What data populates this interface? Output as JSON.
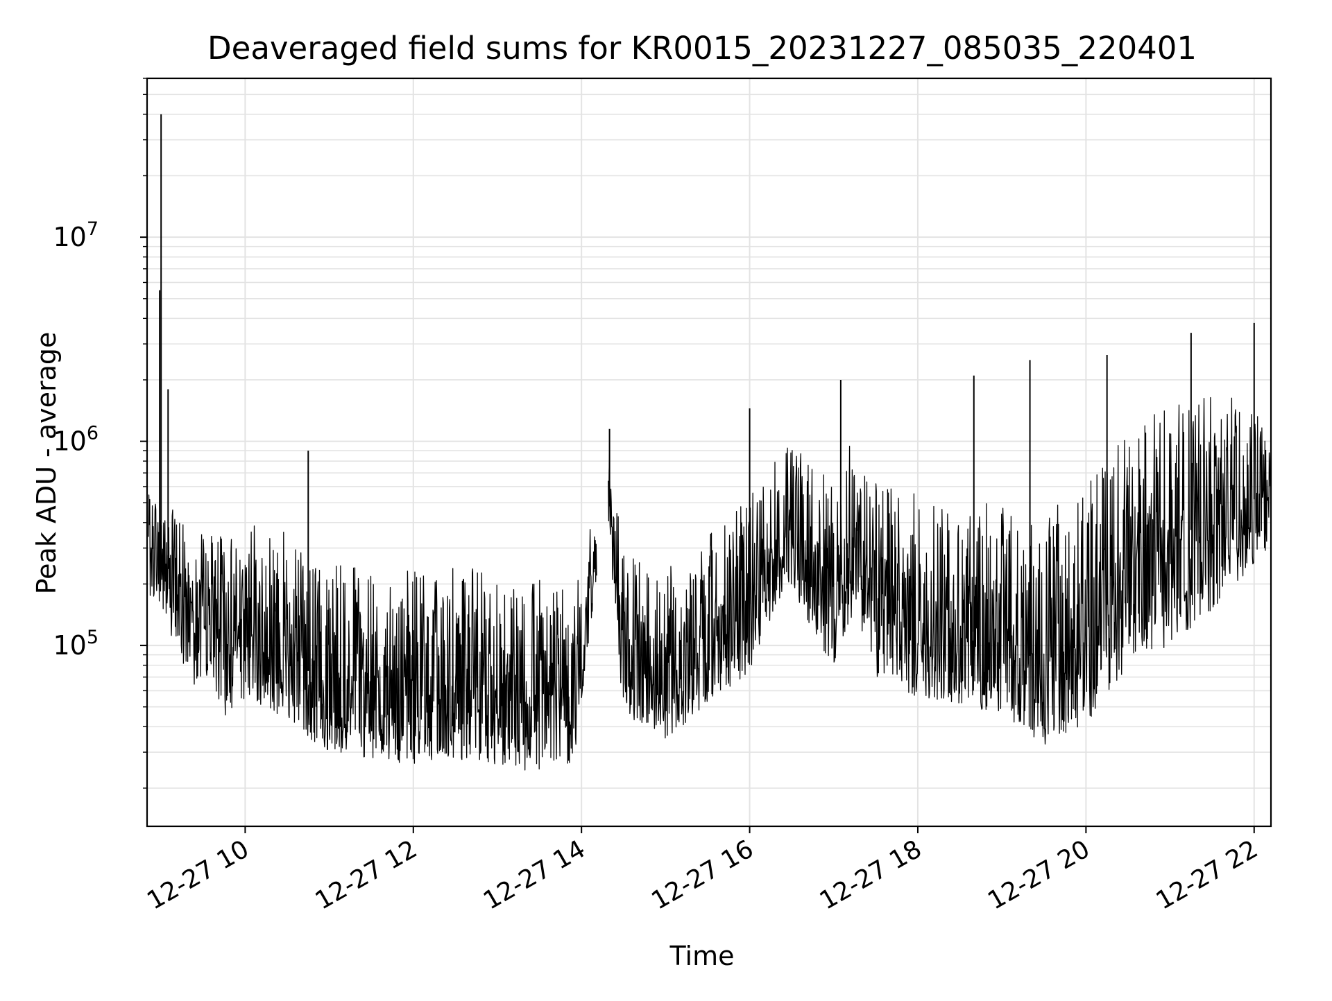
{
  "chart_data": {
    "type": "line",
    "title": "Deaveraged field sums for KR0015_20231227_085035_220401",
    "xlabel": "Time",
    "ylabel": "Peak ADU - average",
    "xscale": "time",
    "yscale": "log",
    "xlim": [
      "2023-12-27 08:50",
      "2023-12-27 22:12"
    ],
    "ylim": [
      13000,
      60000000
    ],
    "grid": true,
    "legend": "none",
    "x_ticks": [
      {
        "label": "12-27 10",
        "time": "2023-12-27 10:00"
      },
      {
        "label": "12-27 12",
        "time": "2023-12-27 12:00"
      },
      {
        "label": "12-27 14",
        "time": "2023-12-27 14:00"
      },
      {
        "label": "12-27 16",
        "time": "2023-12-27 16:00"
      },
      {
        "label": "12-27 18",
        "time": "2023-12-27 18:00"
      },
      {
        "label": "12-27 20",
        "time": "2023-12-27 20:00"
      },
      {
        "label": "12-27 22",
        "time": "2023-12-27 22:00"
      }
    ],
    "y_ticks": [
      {
        "base": "10",
        "exp": "5",
        "value": 100000
      },
      {
        "base": "10",
        "exp": "6",
        "value": 1000000
      },
      {
        "base": "10",
        "exp": "7",
        "value": 10000000
      }
    ],
    "series": [
      {
        "color": "#000000",
        "x": [
          "2023-12-27 08:51",
          "2023-12-27 09:00",
          "2023-12-27 09:10",
          "2023-12-27 09:20",
          "2023-12-27 09:30",
          "2023-12-27 09:45",
          "2023-12-27 10:00",
          "2023-12-27 10:15",
          "2023-12-27 10:30",
          "2023-12-27 10:45",
          "2023-12-27 11:00",
          "2023-12-27 11:30",
          "2023-12-27 12:00",
          "2023-12-27 12:30",
          "2023-12-27 13:00",
          "2023-12-27 13:30",
          "2023-12-27 13:55",
          "2023-12-27 14:10",
          "2023-12-27 14:20",
          "2023-12-27 14:30",
          "2023-12-27 14:45",
          "2023-12-27 15:00",
          "2023-12-27 15:30",
          "2023-12-27 16:00",
          "2023-12-27 16:30",
          "2023-12-27 16:45",
          "2023-12-27 17:00",
          "2023-12-27 17:15",
          "2023-12-27 17:30",
          "2023-12-27 18:00",
          "2023-12-27 18:30",
          "2023-12-27 19:00",
          "2023-12-27 19:30",
          "2023-12-27 20:00",
          "2023-12-27 20:30",
          "2023-12-27 21:00",
          "2023-12-27 21:30",
          "2023-12-27 22:00",
          "2023-12-27 22:12"
        ],
        "y": [
          300000,
          280000,
          200000,
          160000,
          120000,
          110000,
          120000,
          110000,
          90000,
          75000,
          60000,
          60000,
          55000,
          60000,
          55000,
          50000,
          50000,
          300000,
          480000,
          100000,
          90000,
          80000,
          110000,
          160000,
          380000,
          220000,
          180000,
          340000,
          170000,
          140000,
          120000,
          110000,
          80000,
          100000,
          250000,
          300000,
          450000,
          520000,
          500000
        ],
        "lower": [
          180000,
          150000,
          100000,
          70000,
          55000,
          45000,
          55000,
          50000,
          40000,
          34000,
          30000,
          28000,
          26000,
          28000,
          25000,
          24000,
          25000,
          180000,
          300000,
          45000,
          40000,
          35000,
          50000,
          75000,
          200000,
          110000,
          80000,
          150000,
          70000,
          55000,
          50000,
          45000,
          32000,
          40000,
          80000,
          100000,
          150000,
          250000,
          300000
        ],
        "upper": [
          550000,
          600000,
          450000,
          400000,
          350000,
          350000,
          380000,
          420000,
          380000,
          300000,
          250000,
          240000,
          230000,
          250000,
          230000,
          220000,
          210000,
          500000,
          900000,
          280000,
          250000,
          250000,
          350000,
          550000,
          1100000,
          800000,
          600000,
          1100000,
          650000,
          550000,
          500000,
          500000,
          450000,
          600000,
          1200000,
          1500000,
          1800000,
          1500000,
          900000
        ],
        "spikes": [
          {
            "x": "2023-12-27 09:00",
            "y": 40000000
          },
          {
            "x": "2023-12-27 08:59",
            "y": 5500000
          },
          {
            "x": "2023-12-27 09:05",
            "y": 1800000
          },
          {
            "x": "2023-12-27 10:45",
            "y": 900000
          },
          {
            "x": "2023-12-27 14:20",
            "y": 1150000
          },
          {
            "x": "2023-12-27 16:00",
            "y": 1450000
          },
          {
            "x": "2023-12-27 17:05",
            "y": 2000000
          },
          {
            "x": "2023-12-27 18:40",
            "y": 2100000
          },
          {
            "x": "2023-12-27 19:20",
            "y": 2500000
          },
          {
            "x": "2023-12-27 20:15",
            "y": 2650000
          },
          {
            "x": "2023-12-27 21:15",
            "y": 3400000
          },
          {
            "x": "2023-12-27 22:00",
            "y": 3800000
          }
        ]
      }
    ]
  }
}
